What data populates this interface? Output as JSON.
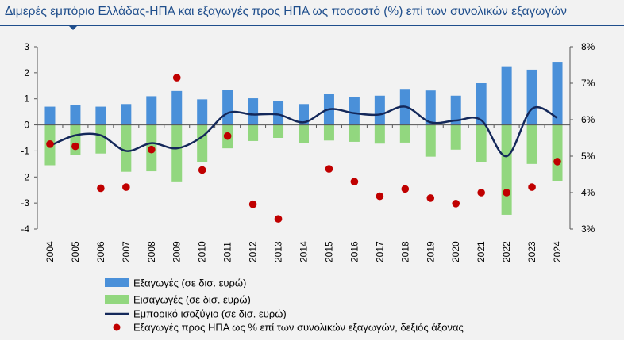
{
  "title": "Διμερές εμπόριο Ελλάδας-ΗΠΑ και εξαγωγές προς ΗΠΑ ως ποσοστό (%) επί των συνολικών εξαγωγών",
  "chart_data": {
    "type": "bar",
    "categories": [
      "2004",
      "2005",
      "2006",
      "2007",
      "2008",
      "2009",
      "2010",
      "2011",
      "2012",
      "2013",
      "2014",
      "2015",
      "2016",
      "2017",
      "2018",
      "2019",
      "2020",
      "2021",
      "2022",
      "2023",
      "2024"
    ],
    "ylim": [
      -4,
      3
    ],
    "y2lim": [
      3,
      8
    ],
    "y_ticks": [
      "3",
      "2",
      "1",
      "0",
      "-1",
      "-2",
      "-3",
      "-4"
    ],
    "y2_ticks": [
      "8%",
      "7%",
      "6%",
      "5%",
      "4%",
      "3%"
    ],
    "grid": false,
    "legend_position": "bottom",
    "series": [
      {
        "name": "Εξαγωγές (σε δισ. ευρώ)",
        "type": "bar",
        "axis": "left",
        "color": "#4a90d9",
        "values": [
          0.7,
          0.77,
          0.7,
          0.8,
          1.1,
          1.3,
          0.98,
          1.35,
          1.02,
          0.9,
          0.8,
          1.2,
          1.08,
          1.12,
          1.38,
          1.32,
          1.12,
          1.6,
          2.25,
          2.12,
          2.42
        ]
      },
      {
        "name": "Εισαγωγές (σε δισ. ευρώ)",
        "type": "bar",
        "axis": "left",
        "color": "#92d77f",
        "values": [
          -1.55,
          -1.15,
          -1.1,
          -1.8,
          -1.78,
          -2.2,
          -1.42,
          -0.9,
          -0.62,
          -0.5,
          -0.7,
          -0.6,
          -0.65,
          -0.72,
          -0.68,
          -1.22,
          -0.95,
          -1.42,
          -3.45,
          -1.5,
          -2.15
        ]
      },
      {
        "name": "Εμπορικό ισοζύγιο (σε δισ. ευρώ)",
        "type": "line",
        "axis": "left",
        "color": "#14285a",
        "values": [
          -0.8,
          -0.4,
          -0.4,
          -1.0,
          -0.7,
          -0.9,
          -0.45,
          0.45,
          0.4,
          0.4,
          0.1,
          0.6,
          0.45,
          0.4,
          0.7,
          0.1,
          0.17,
          0.18,
          -1.2,
          0.62,
          0.27
        ]
      },
      {
        "name": "Εξαγωγές προς ΗΠΑ ως % επί των συνολικών εξαγωγών, δεξιός άξονας",
        "type": "scatter",
        "axis": "right",
        "color": "#c00000",
        "values": [
          5.33,
          5.27,
          4.12,
          4.15,
          5.18,
          7.15,
          4.62,
          5.55,
          3.68,
          3.28,
          null,
          4.65,
          4.3,
          3.9,
          4.1,
          3.85,
          3.7,
          4.0,
          4.0,
          4.15,
          4.85
        ]
      }
    ]
  }
}
